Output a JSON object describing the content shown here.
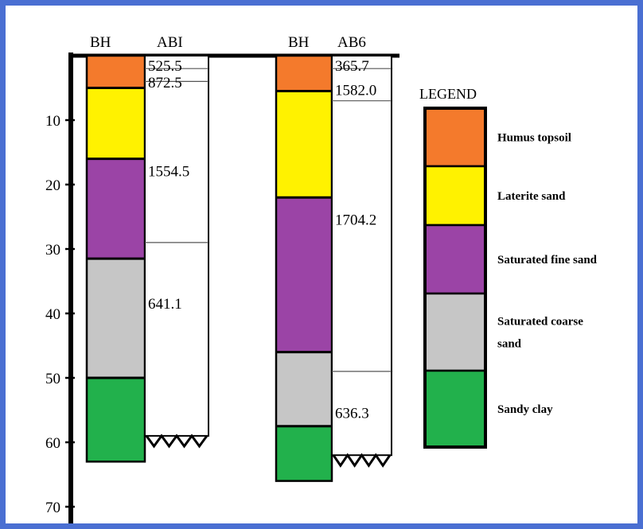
{
  "depth_axis": {
    "ticks": [
      {
        "depth": 10,
        "label": "10"
      },
      {
        "depth": 20,
        "label": "20"
      },
      {
        "depth": 30,
        "label": "30"
      },
      {
        "depth": 40,
        "label": "40"
      },
      {
        "depth": 50,
        "label": "50"
      },
      {
        "depth": 60,
        "label": "60"
      },
      {
        "depth": 70,
        "label": "70"
      }
    ]
  },
  "logs": [
    {
      "bh_header": "BH",
      "res_header": "ABI",
      "total_depth": 63,
      "strata": [
        {
          "layer": "humus",
          "from": 0,
          "to": 5
        },
        {
          "layer": "laterite",
          "from": 5,
          "to": 16
        },
        {
          "layer": "fine",
          "from": 16,
          "to": 31.5
        },
        {
          "layer": "coarse",
          "from": 31.5,
          "to": 50
        },
        {
          "layer": "clay",
          "from": 50,
          "to": 63
        }
      ],
      "resistivity_layers": [
        {
          "value": "525.5",
          "from": 0,
          "to": 2
        },
        {
          "value": "872.5",
          "from": 2,
          "to": 4
        },
        {
          "value": "1554.5",
          "from": 4,
          "to": 29
        },
        {
          "value": "641.1",
          "from": 29,
          "to": 59
        }
      ],
      "labels_at": [
        0.6,
        3.2,
        17,
        37.5
      ]
    },
    {
      "bh_header": "BH",
      "res_header": "AB6",
      "total_depth": 66,
      "strata": [
        {
          "layer": "humus",
          "from": 0,
          "to": 5.5
        },
        {
          "layer": "laterite",
          "from": 5.5,
          "to": 22
        },
        {
          "layer": "fine",
          "from": 22,
          "to": 46
        },
        {
          "layer": "coarse",
          "from": 46,
          "to": 57.5
        },
        {
          "layer": "clay",
          "from": 57.5,
          "to": 66
        }
      ],
      "resistivity_layers": [
        {
          "value": "365.7",
          "from": 0,
          "to": 2
        },
        {
          "value": "1582.0",
          "from": 2,
          "to": 7
        },
        {
          "value": "1704.2",
          "from": 7,
          "to": 49
        },
        {
          "value": "636.3",
          "from": 49,
          "to": 62
        }
      ],
      "labels_at": [
        0.6,
        4.4,
        24.5,
        54.5
      ]
    }
  ],
  "legend": {
    "title": "LEGEND",
    "items": [
      {
        "key": "humus",
        "label_lines": [
          "Humus topsoil"
        ],
        "color": "#f47a2c"
      },
      {
        "key": "laterite",
        "label_lines": [
          "Laterite sand"
        ],
        "color": "#fff200"
      },
      {
        "key": "fine",
        "label_lines": [
          "Saturated fine sand"
        ],
        "color": "#9b44a6"
      },
      {
        "key": "coarse",
        "label_lines": [
          "Saturated coarse",
          "sand"
        ],
        "color": "#c6c6c6"
      },
      {
        "key": "clay",
        "label_lines": [
          "Sandy clay"
        ],
        "color": "#22b14c"
      }
    ]
  },
  "colors": {
    "frame": "#4a6fd2",
    "humus": "#f47a2c",
    "laterite": "#fff200",
    "fine": "#9b44a6",
    "coarse": "#c6c6c6",
    "clay": "#22b14c"
  }
}
